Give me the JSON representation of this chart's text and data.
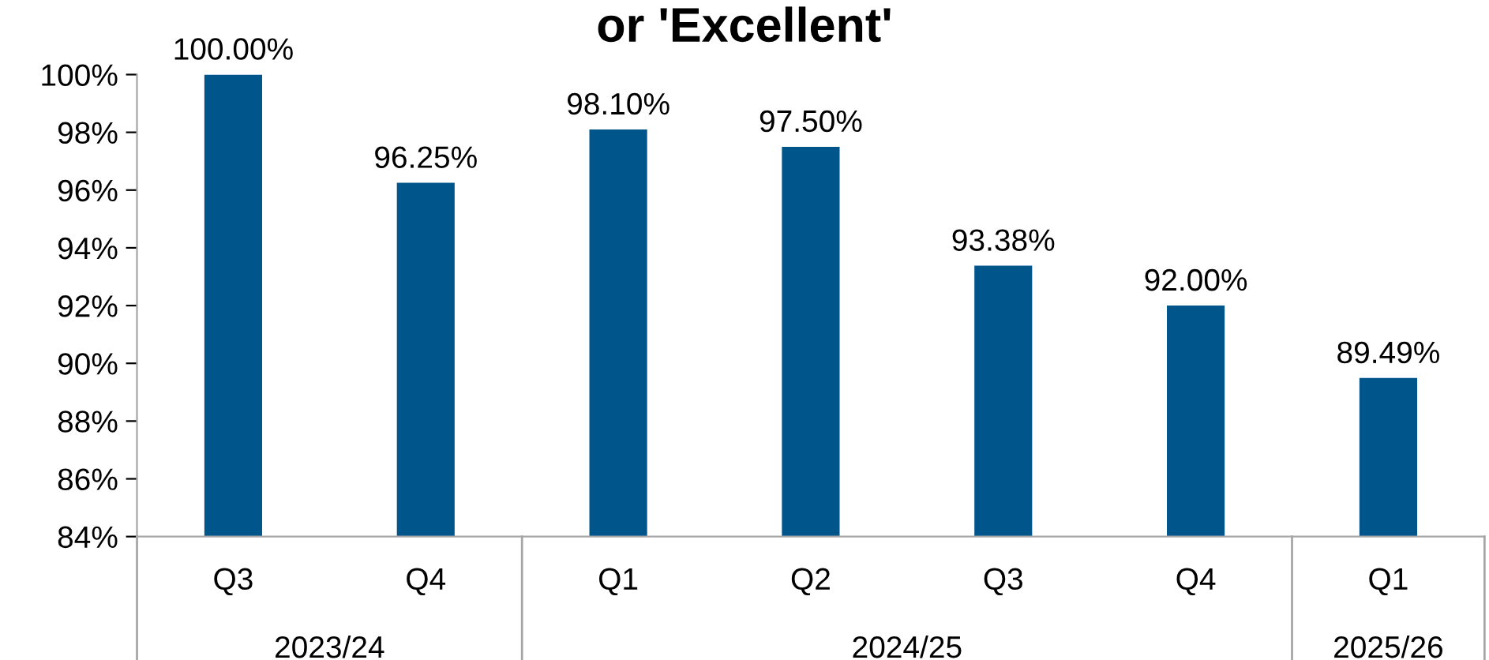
{
  "chart_data": {
    "type": "bar",
    "title": "or 'Excellent'",
    "categories": [
      "Q3",
      "Q4",
      "Q1",
      "Q2",
      "Q3",
      "Q4",
      "Q1"
    ],
    "values": [
      100.0,
      96.25,
      98.1,
      97.5,
      93.38,
      92.0,
      89.49
    ],
    "value_labels": [
      "100.00%",
      "96.25%",
      "98.10%",
      "97.50%",
      "93.38%",
      "92.00%",
      "89.49%"
    ],
    "color": "#00558b",
    "ylim": [
      84,
      100
    ],
    "yticks": [
      {
        "value": 84,
        "label": "84%"
      },
      {
        "value": 86,
        "label": "86%"
      },
      {
        "value": 88,
        "label": "88%"
      },
      {
        "value": 90,
        "label": "90%"
      },
      {
        "value": 92,
        "label": "92%"
      },
      {
        "value": 94,
        "label": "94%"
      },
      {
        "value": 96,
        "label": "96%"
      },
      {
        "value": 98,
        "label": "98%"
      },
      {
        "value": 100,
        "label": "100%"
      }
    ],
    "annotations": [
      "2023/24",
      "2024/25",
      "2025/26"
    ],
    "grid": false,
    "legend": false
  }
}
